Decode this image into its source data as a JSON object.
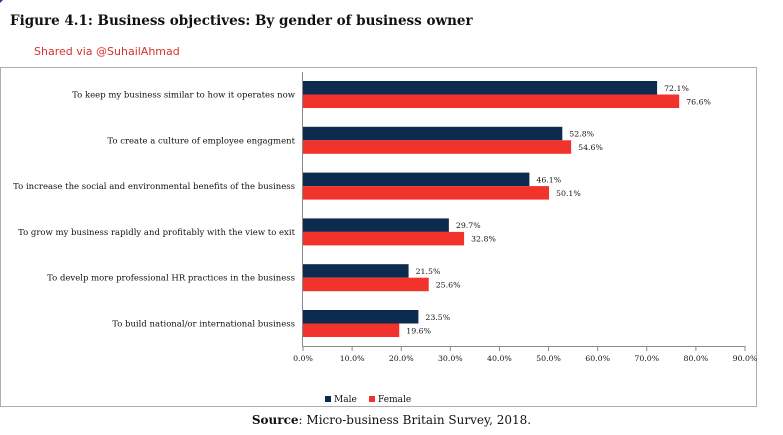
{
  "figure_title": "Figure 4.1: Business objectives: By gender of business owner",
  "watermark": "Shared via @SuhailAhmad",
  "source_bold": "Source",
  "source_rest": ": Micro-business Britain Survey, 2018.",
  "chart_data": {
    "type": "bar",
    "orientation": "horizontal",
    "title": "Figure 4.1: Business objectives: By gender of business owner",
    "xlabel": "",
    "ylabel": "",
    "xlim": [
      0,
      90
    ],
    "tick_values": [
      0,
      10,
      20,
      30,
      40,
      50,
      60,
      70,
      80,
      90
    ],
    "tick_labels": [
      "0.0%",
      "10.0%",
      "20.0%",
      "30.0%",
      "40.0%",
      "50.0%",
      "60.0%",
      "70.0%",
      "80.0%",
      "90.0%"
    ],
    "categories": [
      "To keep my business similar to how it operates now",
      "To create a culture of employee engagment",
      "To increase the social and environmental benefits of the business",
      "To grow my business rapidly and profitably with the view to exit",
      "To develp more professional HR practices in the business",
      "To build national/or international business"
    ],
    "series": [
      {
        "name": "Male",
        "color": "#0d2a4f",
        "values": [
          72.1,
          52.8,
          46.1,
          29.7,
          21.5,
          23.5
        ],
        "labels": [
          "72.1%",
          "52.8%",
          "46.1%",
          "29.7%",
          "21.5%",
          "23.5%"
        ]
      },
      {
        "name": "Female",
        "color": "#f2332b",
        "values": [
          76.6,
          54.6,
          50.1,
          32.8,
          25.6,
          19.6
        ],
        "labels": [
          "76.6%",
          "54.6%",
          "50.1%",
          "32.8%",
          "25.6%",
          "19.6%"
        ]
      }
    ],
    "grid": false,
    "legend_position": "bottom-center"
  }
}
